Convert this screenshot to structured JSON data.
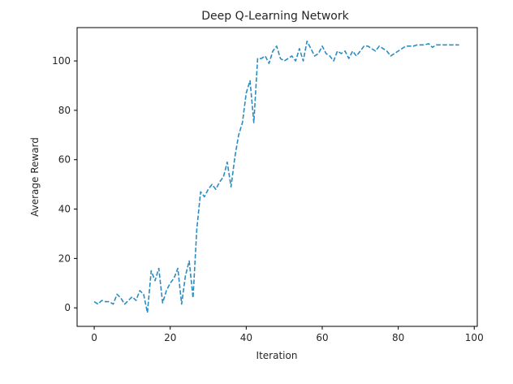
{
  "chart_data": {
    "type": "line",
    "title": "Deep Q-Learning Network",
    "xlabel": "Iteration",
    "ylabel": "Average Reward",
    "xlim": [
      -4.5,
      100.8
    ],
    "ylim": [
      -7.5,
      113.5
    ],
    "xticks": [
      0,
      20,
      40,
      60,
      80,
      100
    ],
    "yticks": [
      0,
      20,
      40,
      60,
      80,
      100
    ],
    "grid": false,
    "line_style": "dashed",
    "color": "#2b8cc4",
    "series": [
      {
        "x": [
          0,
          1,
          2,
          3,
          4,
          5,
          6,
          7,
          8,
          9,
          10,
          11,
          12,
          13,
          14,
          15,
          16,
          17,
          18,
          19,
          20,
          21,
          22,
          23,
          24,
          25,
          26,
          27,
          28,
          29,
          30,
          31,
          32,
          33,
          34,
          35,
          36,
          37,
          38,
          39,
          40,
          41,
          42,
          43,
          44,
          45,
          46,
          47,
          48,
          49,
          50,
          51,
          52,
          53,
          54,
          55,
          56,
          57,
          58,
          59,
          60,
          61,
          62,
          63,
          64,
          65,
          66,
          67,
          68,
          69,
          70,
          71,
          72,
          73,
          74,
          75,
          76,
          77,
          78,
          79,
          80,
          81,
          82,
          83,
          84,
          85,
          86,
          87,
          88,
          89,
          90,
          91,
          92,
          93,
          94,
          95,
          96
        ],
        "y": [
          2.5,
          1.5,
          3.0,
          2.5,
          2.5,
          1.5,
          5.5,
          4.0,
          1.5,
          3.0,
          4.5,
          3.0,
          7.0,
          5.5,
          -2.0,
          15.0,
          11.0,
          16.0,
          2.0,
          7.0,
          10.0,
          12.0,
          16.0,
          1.5,
          13.0,
          19.0,
          4.0,
          32.0,
          47.0,
          45.0,
          48.0,
          50.0,
          48.0,
          51.0,
          53.0,
          59.0,
          49.0,
          61.0,
          70.0,
          75.0,
          87.0,
          92.0,
          75.0,
          101.0,
          101.0,
          102.0,
          99.0,
          104.0,
          106.0,
          101.0,
          100.0,
          101.0,
          102.0,
          100.0,
          105.0,
          100.0,
          108.0,
          105.0,
          102.0,
          103.0,
          106.0,
          103.0,
          102.0,
          100.0,
          104.0,
          103.0,
          104.0,
          101.0,
          104.0,
          102.0,
          104.0,
          106.0,
          106.0,
          105.0,
          104.0,
          106.0,
          105.0,
          104.0,
          102.0,
          103.0,
          104.0,
          105.0,
          106.0,
          106.0,
          106.0,
          106.5,
          106.5,
          106.5,
          107.0,
          105.5,
          106.5,
          106.5,
          106.5,
          106.5,
          106.5,
          106.5,
          106.5
        ]
      }
    ]
  }
}
